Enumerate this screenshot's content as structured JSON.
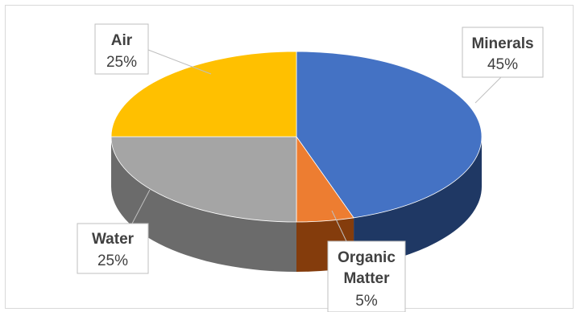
{
  "chart_data": {
    "type": "pie",
    "title": "",
    "style": "3d",
    "legend": "none",
    "slices": [
      {
        "label": "Minerals",
        "label_lines": [
          "Minerals"
        ],
        "value": 45,
        "value_label": "45%",
        "color": "#4472c4",
        "side_color": "#1f3864"
      },
      {
        "label": "Organic Matter",
        "label_lines": [
          "Organic",
          "Matter"
        ],
        "value": 5,
        "value_label": "5%",
        "color": "#ed7d31",
        "side_color": "#843c0c"
      },
      {
        "label": "Water",
        "label_lines": [
          "Water"
        ],
        "value": 25,
        "value_label": "25%",
        "color": "#a5a5a5",
        "side_color": "#6b6b6b"
      },
      {
        "label": "Air",
        "label_lines": [
          "Air"
        ],
        "value": 25,
        "value_label": "25%",
        "color": "#ffc000",
        "side_color": "#b38600"
      }
    ]
  }
}
